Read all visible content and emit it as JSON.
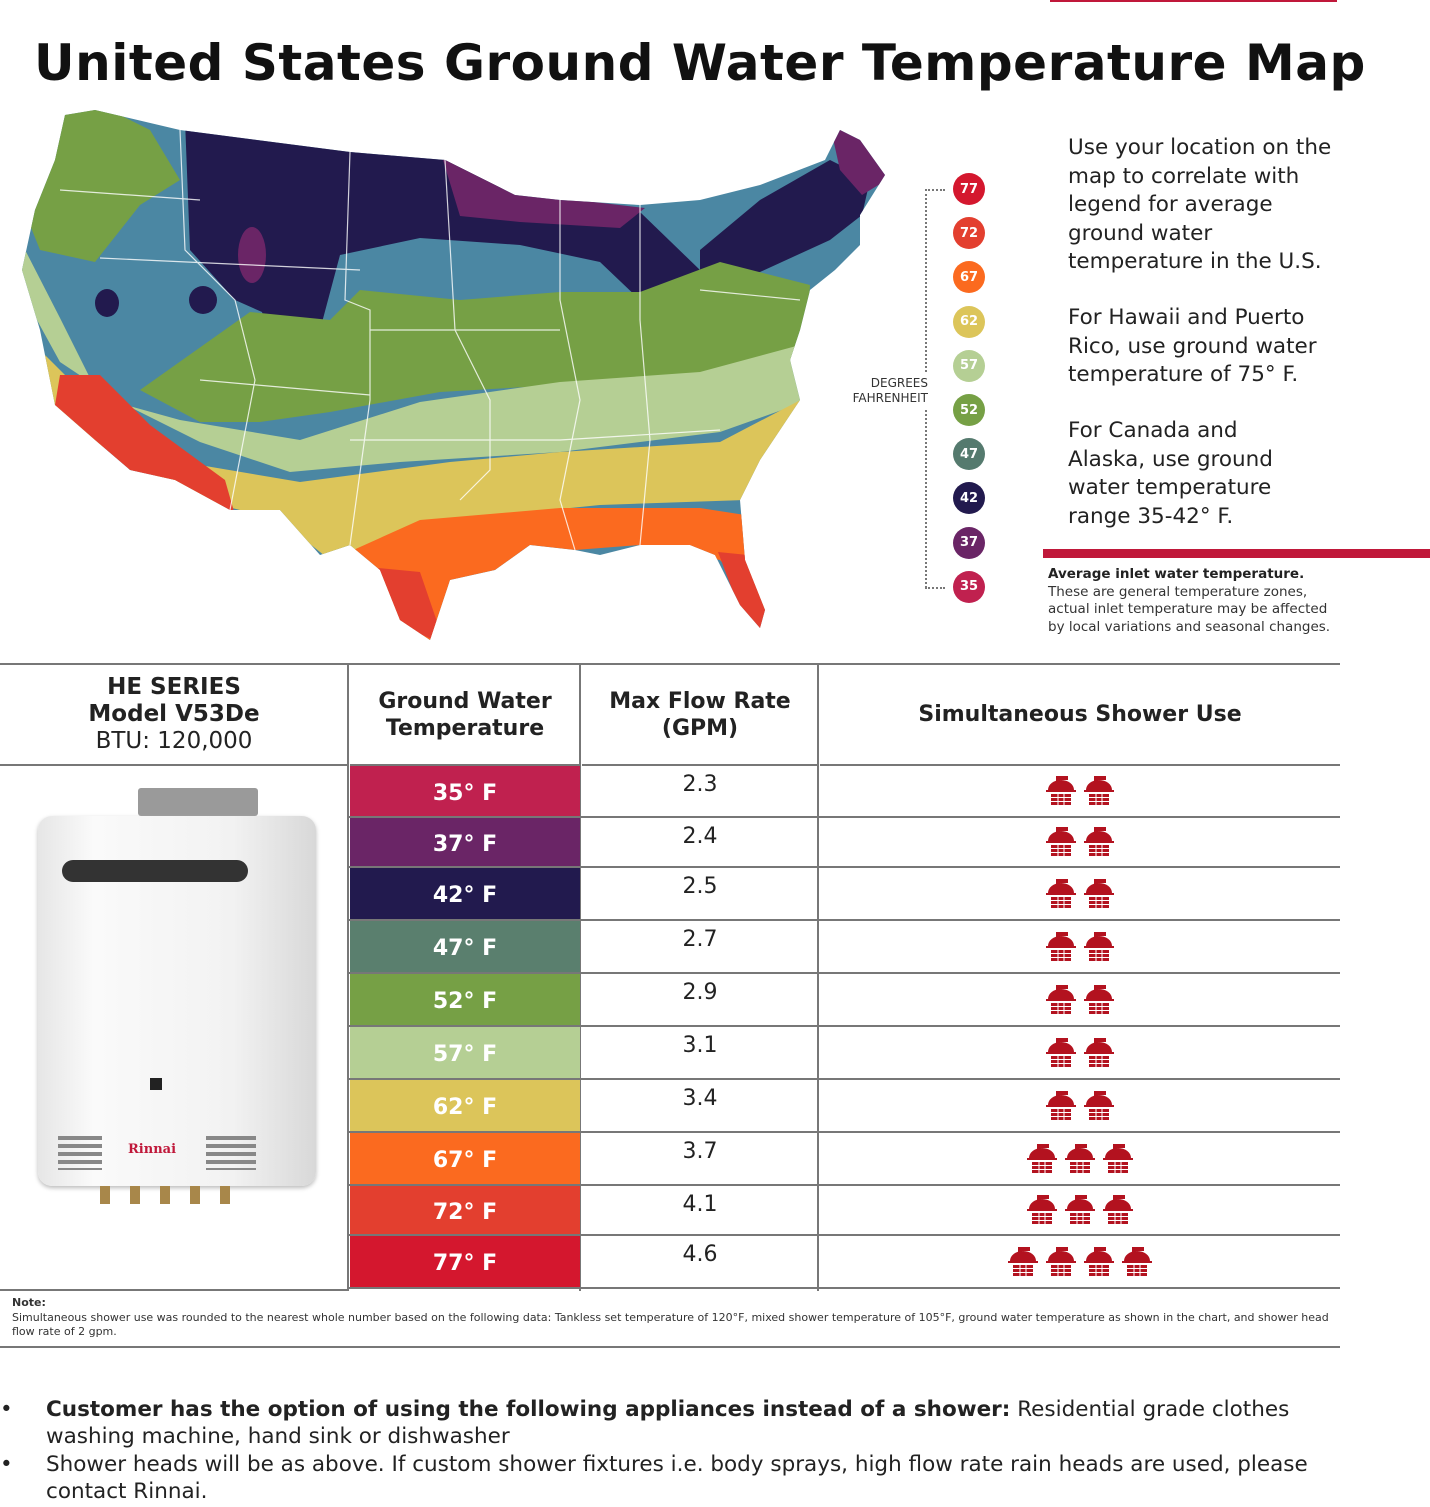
{
  "title": "United States Ground Water Temperature Map",
  "legend": {
    "label_line1": "DEGREES",
    "label_line2": "FAHRENHEIT",
    "items": [
      {
        "value": "77",
        "color": "#d4172e"
      },
      {
        "value": "72",
        "color": "#e33f2f"
      },
      {
        "value": "67",
        "color": "#fb6a1f"
      },
      {
        "value": "62",
        "color": "#dcc55a"
      },
      {
        "value": "57",
        "color": "#b5cf94"
      },
      {
        "value": "52",
        "color": "#76a045"
      },
      {
        "value": "47",
        "color": "#557a6e"
      },
      {
        "value": "42",
        "color": "#221a4e"
      },
      {
        "value": "37",
        "color": "#6a2566"
      },
      {
        "value": "35",
        "color": "#c0214f"
      }
    ]
  },
  "side": {
    "p1": "Use your location on the map to correlate with legend for average ground water temperature in the U.S.",
    "p2": "For Hawaii and Puerto Rico, use ground water temperature of 75° F.",
    "p3": "For Canada and Alaska, use ground water temperature range 35-42° F.",
    "disc_bold": "Average inlet water temperature.",
    "disc": "These are general temperature zones, actual inlet temperature may be affected by local variations and seasonal changes."
  },
  "table": {
    "model_line1": "HE SERIES",
    "model_line2": "Model V53De",
    "model_line3": "BTU: 120,000",
    "col_temp": "Ground Water Temperature",
    "col_flow": "Max Flow Rate (GPM)",
    "col_shower": "Simultaneous Shower Use",
    "heater_brand": "Rinnai",
    "rows": [
      {
        "temp": "35° F",
        "flow": "2.3",
        "showers": 2,
        "color": "#c0214f"
      },
      {
        "temp": "37° F",
        "flow": "2.4",
        "showers": 2,
        "color": "#6a2566"
      },
      {
        "temp": "42° F",
        "flow": "2.5",
        "showers": 2,
        "color": "#221a4e"
      },
      {
        "temp": "47° F",
        "flow": "2.7",
        "showers": 2,
        "color": "#5a7f6e"
      },
      {
        "temp": "52° F",
        "flow": "2.9",
        "showers": 2,
        "color": "#76a045"
      },
      {
        "temp": "57° F",
        "flow": "3.1",
        "showers": 2,
        "color": "#b5cf94"
      },
      {
        "temp": "62° F",
        "flow": "3.4",
        "showers": 2,
        "color": "#dcc55a"
      },
      {
        "temp": "67° F",
        "flow": "3.7",
        "showers": 3,
        "color": "#fb6a1f"
      },
      {
        "temp": "72° F",
        "flow": "4.1",
        "showers": 3,
        "color": "#e33f2f"
      },
      {
        "temp": "77° F",
        "flow": "4.6",
        "showers": 4,
        "color": "#d4172e"
      }
    ]
  },
  "note": {
    "label": "Note:",
    "text": "Simultaneous shower use was rounded to the nearest whole number based on the following data: Tankless set temperature of 120°F, mixed shower temperature of 105°F, ground water temperature as shown in the chart, and shower head flow rate of 2 gpm."
  },
  "bullets": [
    {
      "bold": "Customer has the option of using the following appliances instead of a shower:",
      "text": " Residential grade clothes washing machine, hand sink or dishwasher"
    },
    {
      "bold": "",
      "text": "Shower heads will be as above. If custom shower fixtures  i.e. body sprays, high flow rate rain heads are used, please contact Rinnai."
    }
  ],
  "colors": {
    "accent": "#c0183a",
    "map_blue": "#4b87a3",
    "shower_icon": "#b3121f"
  }
}
